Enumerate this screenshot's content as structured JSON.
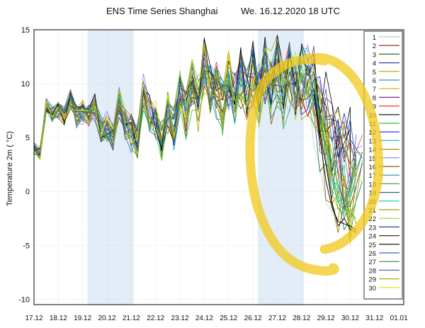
{
  "chart_data": {
    "type": "line",
    "title": "ENS Time Series Shanghai",
    "subtitle": "We. 16.12.2020 18 UTC",
    "ylabel": "Temperature 2m ( °C)",
    "xlabel": "",
    "x_tick_labels": [
      "17.12",
      "18.12",
      "19.12",
      "20.12",
      "21.12",
      "22.12",
      "23.12",
      "24.12",
      "25.12",
      "26.12",
      "27.12",
      "28.12",
      "29.12",
      "30.12",
      "31.12",
      "01.01"
    ],
    "y_ticks": [
      15,
      10,
      5,
      0,
      -5,
      -10
    ],
    "ylim": [
      -10.5,
      15
    ],
    "xlim": [
      17.0,
      32.2
    ],
    "grid": true,
    "shaded_days": [
      [
        19.2,
        21.1
      ],
      [
        26.2,
        28.1
      ]
    ],
    "legend_position": "right",
    "legend_entries": [
      "1",
      "2",
      "3",
      "4",
      "5",
      "6",
      "7",
      "8",
      "9",
      "10",
      "11",
      "12",
      "13",
      "14",
      "15",
      "16",
      "17",
      "18",
      "19",
      "20",
      "21",
      "22",
      "23",
      "24",
      "25",
      "26",
      "27",
      "28",
      "29",
      "30"
    ],
    "series_colors": [
      "#c8c8c8",
      "#8b1a1a",
      "#1f6f3f",
      "#3b3bb0",
      "#b8a400",
      "#20a0b0",
      "#c8b000",
      "#7a2b8a",
      "#ff3030",
      "#000000",
      "#30c030",
      "#2020e0",
      "#20c0c0",
      "#b08800",
      "#8080ff",
      "#806000",
      "#209090",
      "#40b040",
      "#406080",
      "#00c8c8",
      "#a0a000",
      "#a0d030",
      "#2040a0",
      "#602020",
      "#000000",
      "#3070c0",
      "#309030",
      "#6060c0",
      "#c0a000",
      "#e0e000"
    ],
    "ensemble_mean": {
      "x": [
        17.0,
        17.25,
        17.5,
        17.75,
        18.0,
        18.25,
        18.5,
        18.75,
        19.0,
        19.25,
        19.5,
        19.75,
        20.0,
        20.25,
        20.5,
        20.75,
        21.0,
        21.25,
        21.5,
        21.75,
        22.0,
        22.25,
        22.5,
        22.75,
        23.0,
        23.25,
        23.5,
        23.75,
        24.0,
        24.25,
        24.5,
        24.75,
        25.0,
        25.25,
        25.5,
        25.75,
        26.0,
        26.25,
        26.5,
        26.75,
        27.0,
        27.25,
        27.5,
        27.75,
        28.0,
        28.25,
        28.5,
        28.75,
        29.0,
        29.25,
        29.5,
        29.75,
        30.0
      ],
      "y": [
        4.0,
        3.5,
        8.0,
        7.2,
        7.5,
        7.0,
        8.5,
        7.0,
        7.4,
        7.0,
        7.8,
        5.8,
        6.0,
        5.2,
        8.2,
        6.2,
        5.4,
        4.6,
        9.0,
        7.2,
        6.6,
        4.8,
        7.5,
        6.0,
        9.5,
        7.2,
        10.0,
        8.2,
        11.5,
        9.8,
        9.6,
        8.0,
        10.2,
        8.4,
        10.5,
        8.8,
        10.6,
        9.0,
        11.0,
        9.4,
        11.2,
        9.2,
        10.8,
        9.0,
        10.2,
        9.5,
        9.2,
        6.0,
        4.5,
        2.5,
        1.2,
        0.5,
        0.2
      ]
    },
    "late_cold_members": [
      {
        "x": [
          28.5,
          28.75,
          29.0,
          29.25,
          29.5,
          29.75,
          30.0,
          30.25
        ],
        "y": [
          9.5,
          5.5,
          2.5,
          -1.0,
          -3.2,
          -2.5,
          -3.5,
          -3.8
        ]
      },
      {
        "x": [
          28.5,
          28.75,
          29.0,
          29.25,
          29.5,
          29.75,
          30.0,
          30.25
        ],
        "y": [
          9.0,
          5.0,
          1.0,
          -1.5,
          -2.8,
          -3.0,
          -3.2,
          -3.6
        ]
      },
      {
        "x": [
          28.5,
          28.75,
          29.0,
          29.25,
          29.5,
          29.75,
          30.0,
          30.25
        ],
        "y": [
          10.0,
          7.0,
          4.0,
          1.0,
          -1.0,
          -0.5,
          -2.0,
          -2.5
        ]
      },
      {
        "x": [
          28.5,
          28.75,
          29.0,
          29.25,
          29.5,
          29.75,
          30.0,
          30.25
        ],
        "y": [
          10.5,
          9.5,
          8.0,
          6.5,
          5.5,
          4.0,
          2.5,
          1.5
        ]
      },
      {
        "x": [
          28.5,
          28.75,
          29.0,
          29.25,
          29.5,
          29.75,
          30.0,
          30.25
        ],
        "y": [
          9.8,
          8.5,
          6.0,
          3.5,
          2.0,
          0.0,
          -1.5,
          -3.0
        ]
      }
    ],
    "annotation": "yellow hand-drawn circle highlighting the 27.12–30.12 forecast drop"
  }
}
